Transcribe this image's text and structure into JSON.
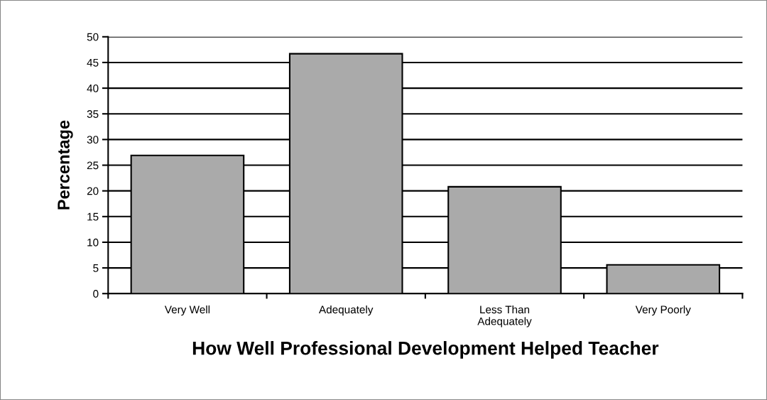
{
  "chart_data": {
    "type": "bar",
    "xlabel": "How Well Professional Development Helped Teacher",
    "ylabel": "Percentage",
    "categories": [
      "Very Well",
      "Adequately",
      "Less Than\nAdequately",
      "Very Poorly"
    ],
    "values": [
      26.9,
      46.7,
      20.8,
      5.6
    ],
    "color": "#aaaaaa",
    "ylim": [
      0,
      50
    ],
    "yticks": [
      0,
      5,
      10,
      15,
      20,
      25,
      30,
      35,
      40,
      45,
      50
    ],
    "grid": "y"
  }
}
